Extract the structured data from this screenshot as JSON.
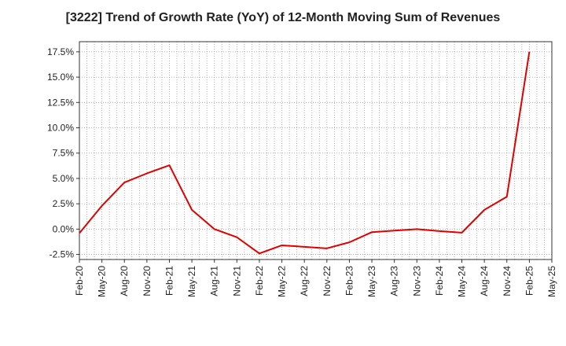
{
  "chart_data": {
    "type": "line",
    "title": "[3222]  Trend of Growth Rate (YoY) of 12-Month Moving Sum of Revenues",
    "xlabel": "",
    "ylabel": "",
    "x_tick_labels": [
      "Feb-20",
      "May-20",
      "Aug-20",
      "Nov-20",
      "Feb-21",
      "May-21",
      "Aug-21",
      "Nov-21",
      "Feb-22",
      "May-22",
      "Aug-22",
      "Nov-22",
      "Feb-23",
      "May-23",
      "Aug-23",
      "Nov-23",
      "Feb-24",
      "May-24",
      "Aug-24",
      "Nov-24",
      "Feb-25",
      "May-25"
    ],
    "y_tick_values": [
      -2.5,
      0.0,
      2.5,
      5.0,
      7.5,
      10.0,
      12.5,
      15.0,
      17.5
    ],
    "y_tick_labels": [
      "-2.5%",
      "0.0%",
      "2.5%",
      "5.0%",
      "7.5%",
      "10.0%",
      "12.5%",
      "15.0%",
      "17.5%"
    ],
    "ylim": [
      -3.0,
      18.5
    ],
    "grid": true,
    "series": [
      {
        "color": "#e00000",
        "x": [
          "Feb-20",
          "May-20",
          "Aug-20",
          "Nov-20",
          "Feb-21",
          "May-21",
          "Aug-21",
          "Nov-21",
          "Feb-22",
          "May-22",
          "Aug-22",
          "Nov-22",
          "Feb-23",
          "May-23",
          "Aug-23",
          "Nov-23",
          "Feb-24",
          "May-24",
          "Aug-24",
          "Nov-24",
          "Feb-25"
        ],
        "values": [
          -0.4,
          2.3,
          4.6,
          5.5,
          6.3,
          1.9,
          0.0,
          -0.8,
          -2.4,
          -1.6,
          -1.75,
          -1.9,
          -1.3,
          -0.3,
          -0.15,
          0.0,
          -0.2,
          -0.35,
          1.9,
          3.2,
          17.5
        ]
      }
    ]
  }
}
